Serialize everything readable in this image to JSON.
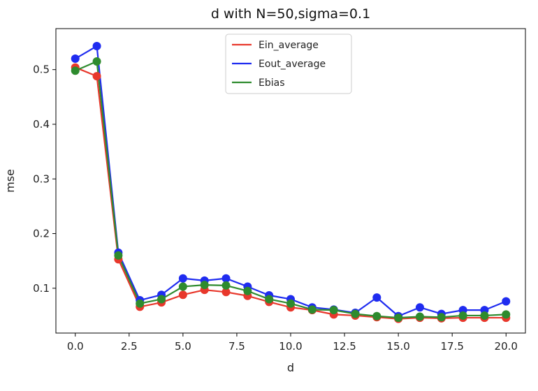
{
  "chart_data": {
    "type": "line",
    "title": "d with N=50,sigma=0.1",
    "xlabel": "d",
    "ylabel": "mse",
    "xlim": [
      -0.9,
      20.9
    ],
    "ylim": [
      0.018,
      0.575
    ],
    "x_ticks": [
      0.0,
      2.5,
      5.0,
      7.5,
      10.0,
      12.5,
      15.0,
      17.5,
      20.0
    ],
    "x_tick_labels": [
      "0.0",
      "2.5",
      "5.0",
      "7.5",
      "10.0",
      "12.5",
      "15.0",
      "17.5",
      "20.0"
    ],
    "y_ticks": [
      0.1,
      0.2,
      0.3,
      0.4,
      0.5
    ],
    "y_tick_labels": [
      "0.1",
      "0.2",
      "0.3",
      "0.4",
      "0.5"
    ],
    "grid": false,
    "legend_position": "top-center",
    "x": [
      0,
      1,
      2,
      3,
      4,
      5,
      6,
      7,
      8,
      9,
      10,
      11,
      12,
      13,
      14,
      15,
      16,
      17,
      18,
      19,
      20
    ],
    "series": [
      {
        "name": "Ein_average",
        "color": "#e8382c",
        "values": [
          0.504,
          0.488,
          0.153,
          0.066,
          0.074,
          0.088,
          0.097,
          0.093,
          0.086,
          0.075,
          0.065,
          0.06,
          0.052,
          0.05,
          0.047,
          0.044,
          0.046,
          0.045,
          0.046,
          0.046,
          0.046
        ]
      },
      {
        "name": "Eout_average",
        "color": "#1f2cf0",
        "values": [
          0.52,
          0.543,
          0.165,
          0.078,
          0.088,
          0.118,
          0.114,
          0.118,
          0.103,
          0.087,
          0.08,
          0.065,
          0.061,
          0.055,
          0.083,
          0.049,
          0.065,
          0.053,
          0.06,
          0.06,
          0.076
        ]
      },
      {
        "name": "Ebias",
        "color": "#2e8b2e",
        "values": [
          0.498,
          0.515,
          0.16,
          0.072,
          0.08,
          0.103,
          0.106,
          0.105,
          0.095,
          0.08,
          0.072,
          0.061,
          0.06,
          0.053,
          0.049,
          0.046,
          0.048,
          0.047,
          0.05,
          0.05,
          0.052
        ]
      }
    ]
  }
}
